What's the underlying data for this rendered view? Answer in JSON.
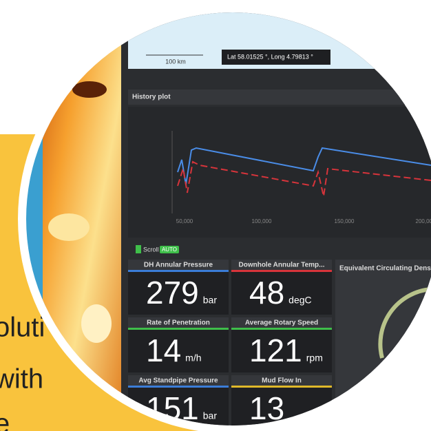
{
  "caption": {
    "lines": [
      "oluti",
      "with",
      "e"
    ]
  },
  "map": {
    "scale": "100 km",
    "coords": "Lat 58.01525 °,  Long 4.79813 °"
  },
  "history_plot": {
    "title": "History plot",
    "xticks": [
      "50,000",
      "100,000",
      "150,000",
      "200,000"
    ]
  },
  "scroll": {
    "label": "Scroll",
    "mode": "AUTO"
  },
  "tiles": [
    {
      "title": "DH Annular Pressure",
      "value": 279,
      "unit": "bar",
      "color": "#3b7dd8"
    },
    {
      "title": "Downhole Annular Temp...",
      "value": 48,
      "unit": "degC",
      "color": "#d8343b"
    },
    {
      "title": "Rate of Penetration",
      "value": 14,
      "unit": "m/h",
      "color": "#3fbf4a"
    },
    {
      "title": "Average Rotary Speed",
      "value": 121,
      "unit": "rpm",
      "color": "#3fbf4a"
    },
    {
      "title": "Avg Standpipe Pressure",
      "value": 151,
      "unit": "bar",
      "color": "#3b7dd8"
    },
    {
      "title": "Mud Flow In",
      "value": 13,
      "unit": "",
      "color": "#e0b92a"
    }
  ],
  "ecd": {
    "title": "Equivalent Circulating Density"
  }
}
